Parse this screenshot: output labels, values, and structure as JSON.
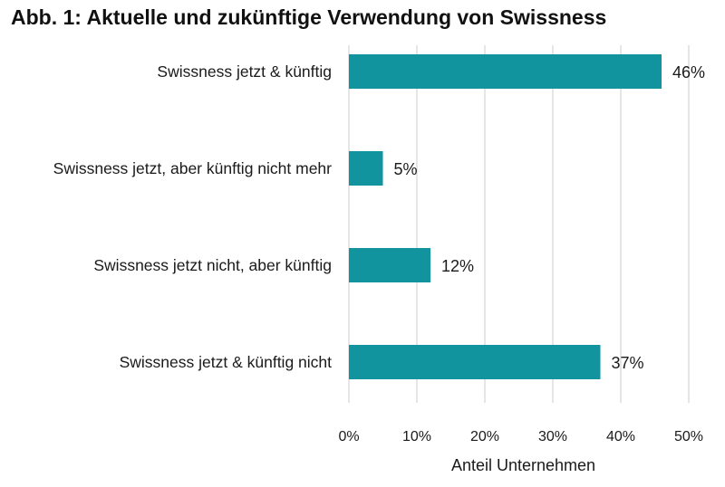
{
  "chart_data": {
    "type": "bar",
    "orientation": "horizontal",
    "title": "Abb. 1: Aktuelle und zukünftige Verwendung von Swissness",
    "categories": [
      "Swissness jetzt & künftig",
      "Swissness jetzt, aber künftig nicht mehr",
      "Swissness jetzt nicht, aber künftig",
      "Swissness jetzt & künftig nicht"
    ],
    "values": [
      46,
      5,
      12,
      37
    ],
    "data_labels": [
      "46%",
      "5%",
      "12%",
      "37%"
    ],
    "xlabel": "Anteil Unternehmen",
    "ylabel": "",
    "xlim": [
      0,
      50
    ],
    "x_ticks": [
      0,
      10,
      20,
      30,
      40,
      50
    ],
    "x_tick_labels": [
      "0%",
      "10%",
      "20%",
      "30%",
      "40%",
      "50%"
    ],
    "grid": "vertical",
    "bar_color": "#12949f",
    "grid_color": "#d4d4d4"
  }
}
